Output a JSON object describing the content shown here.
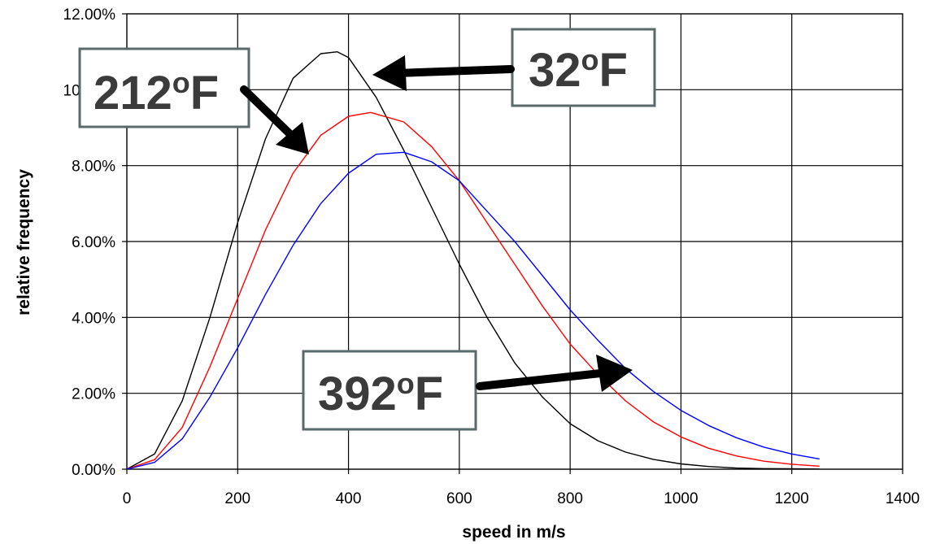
{
  "chart_data": {
    "type": "line",
    "xlabel": "speed in m/s",
    "ylabel": "relative frequency",
    "xlim": [
      0,
      1400
    ],
    "ylim": [
      0,
      0.12
    ],
    "x_ticks": [
      "0",
      "200",
      "400",
      "600",
      "800",
      "1000",
      "1200",
      "1400"
    ],
    "y_ticks": [
      "0.00%",
      "2.00%",
      "4.00%",
      "6.00%",
      "8.00%",
      "10.00%",
      "12.00%"
    ],
    "grid": true,
    "series": [
      {
        "color": "#000000",
        "x": [
          0,
          50,
          100,
          150,
          200,
          250,
          300,
          350,
          380,
          400,
          450,
          500,
          550,
          600,
          650,
          700,
          750,
          800,
          850,
          900,
          950,
          1000,
          1050,
          1100,
          1150,
          1200,
          1250
        ],
        "y": [
          0,
          0.004,
          0.018,
          0.04,
          0.065,
          0.087,
          0.103,
          0.1095,
          0.11,
          0.1085,
          0.098,
          0.084,
          0.069,
          0.054,
          0.04,
          0.028,
          0.019,
          0.012,
          0.0075,
          0.0045,
          0.0026,
          0.0014,
          0.0007,
          0.0003,
          0.00015,
          0.0001,
          5e-05
        ]
      },
      {
        "color": "#ff0000",
        "x": [
          0,
          50,
          100,
          150,
          200,
          250,
          300,
          350,
          400,
          440,
          500,
          550,
          600,
          650,
          700,
          750,
          800,
          850,
          900,
          950,
          1000,
          1050,
          1100,
          1150,
          1200,
          1250
        ],
        "y": [
          0,
          0.0025,
          0.011,
          0.027,
          0.045,
          0.063,
          0.078,
          0.088,
          0.093,
          0.094,
          0.0915,
          0.085,
          0.076,
          0.065,
          0.054,
          0.043,
          0.033,
          0.025,
          0.018,
          0.0125,
          0.0085,
          0.0055,
          0.0035,
          0.0021,
          0.0013,
          0.0008
        ]
      },
      {
        "color": "#0000ff",
        "x": [
          0,
          50,
          100,
          150,
          200,
          250,
          300,
          350,
          400,
          450,
          500,
          550,
          600,
          650,
          700,
          750,
          800,
          850,
          900,
          950,
          1000,
          1050,
          1100,
          1150,
          1200,
          1250
        ],
        "y": [
          0,
          0.0018,
          0.008,
          0.019,
          0.032,
          0.046,
          0.059,
          0.07,
          0.078,
          0.083,
          0.0835,
          0.081,
          0.076,
          0.068,
          0.06,
          0.051,
          0.042,
          0.034,
          0.0265,
          0.0205,
          0.0155,
          0.0115,
          0.0083,
          0.0058,
          0.004,
          0.0027
        ]
      }
    ],
    "annotations": [
      {
        "label": "212",
        "sup": "o",
        "unit": "F"
      },
      {
        "label": "32",
        "sup": "o",
        "unit": "F"
      },
      {
        "label": "392",
        "sup": "o",
        "unit": "F"
      }
    ]
  }
}
